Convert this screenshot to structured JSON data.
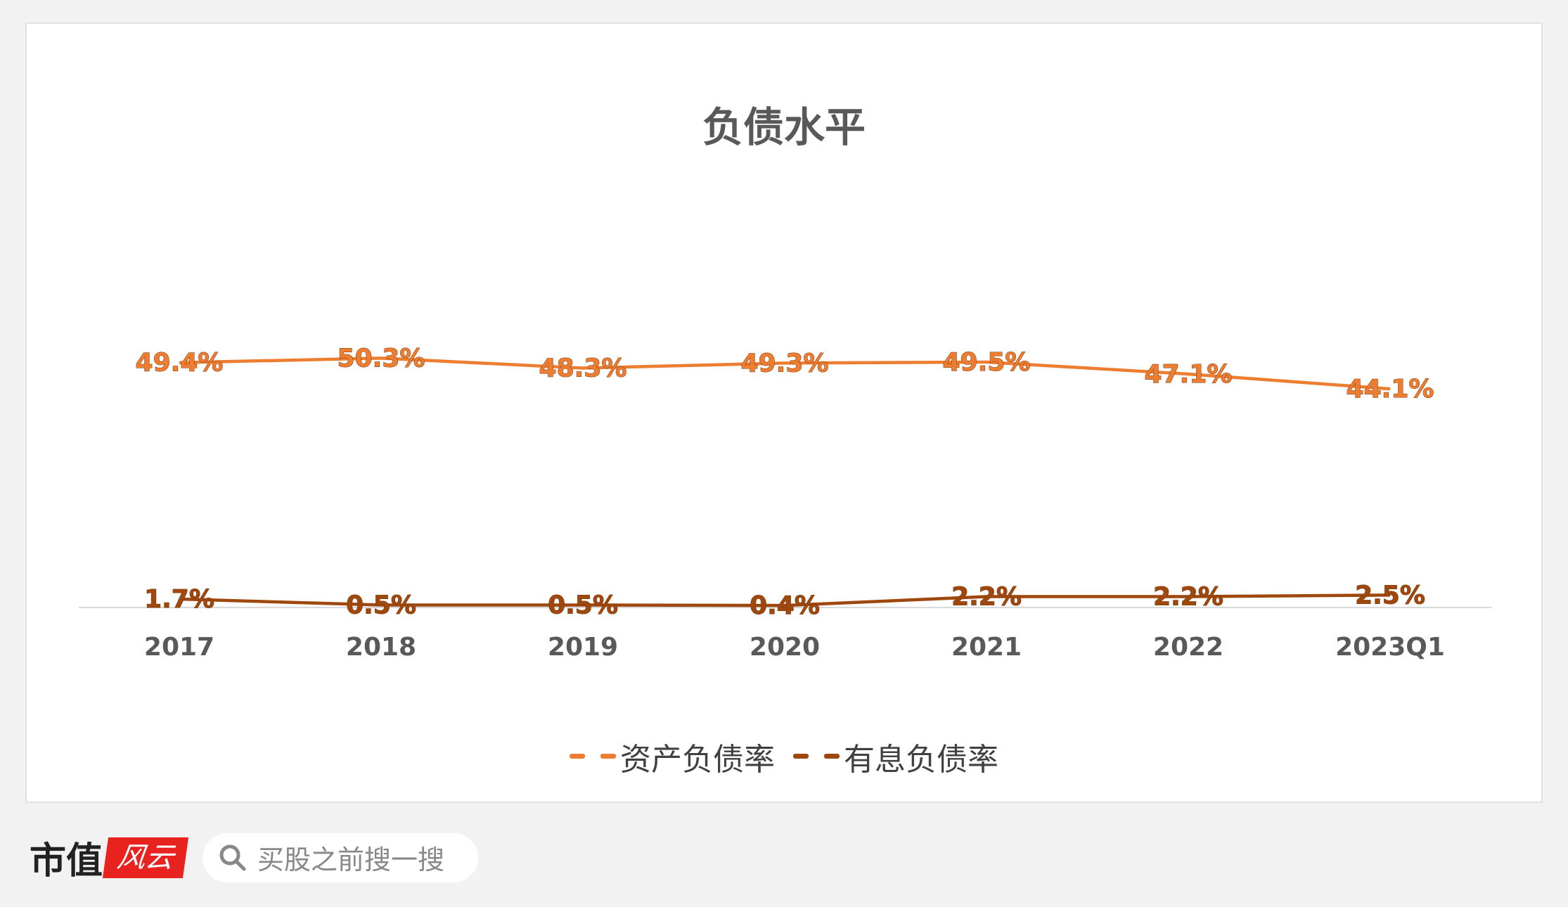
{
  "chart_data": {
    "type": "line",
    "title": "负债水平",
    "categories": [
      "2017",
      "2018",
      "2019",
      "2020",
      "2021",
      "2022",
      "2023Q1"
    ],
    "series": [
      {
        "name": "资产负债率",
        "values": [
          49.4,
          50.3,
          48.3,
          49.3,
          49.5,
          47.1,
          44.1
        ],
        "labels": [
          "49.4%",
          "50.3%",
          "48.3%",
          "49.3%",
          "49.5%",
          "47.1%",
          "44.1%"
        ],
        "color": "#ed7d31"
      },
      {
        "name": "有息负债率",
        "values": [
          1.7,
          0.5,
          0.5,
          0.4,
          2.2,
          2.2,
          2.5
        ],
        "labels": [
          "1.7%",
          "0.5%",
          "0.5%",
          "0.4%",
          "2.2%",
          "2.2%",
          "2.5%"
        ],
        "color": "#9e480e"
      }
    ],
    "unit": "%",
    "grid": false,
    "legend_position": "bottom"
  },
  "footer": {
    "logo_text": "市值",
    "logo_script": "风云",
    "search_placeholder": "买股之前搜一搜"
  },
  "watermark": "市值风云"
}
